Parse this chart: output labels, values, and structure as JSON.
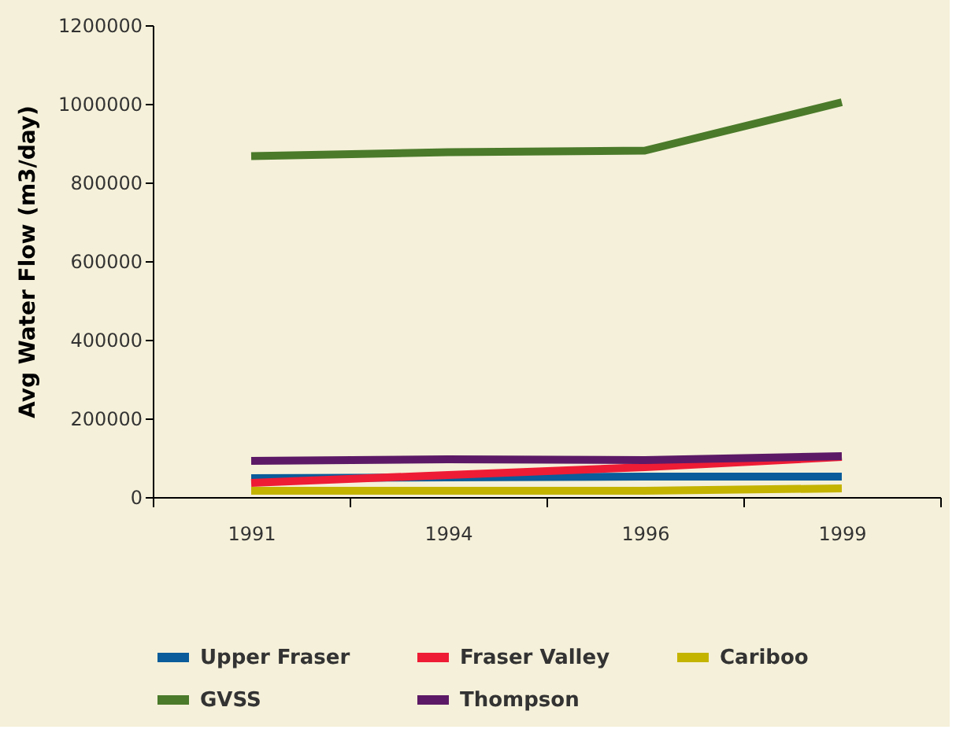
{
  "chart_data": {
    "type": "line",
    "ylabel": "Avg Water Flow (m3/day)",
    "categories": [
      "1991",
      "1994",
      "1996",
      "1999"
    ],
    "series": [
      {
        "name": "Upper Fraser",
        "color": "#0a5c9a",
        "values": [
          48000,
          50000,
          52000,
          52000
        ]
      },
      {
        "name": "Fraser Valley",
        "color": "#ee1c35",
        "values": [
          36000,
          56000,
          76000,
          102000
        ]
      },
      {
        "name": "Cariboo",
        "color": "#c4b400",
        "values": [
          16000,
          16000,
          16000,
          22000
        ]
      },
      {
        "name": "GVSS",
        "color": "#4a7a2a",
        "values": [
          867000,
          877000,
          881000,
          1004000
        ]
      },
      {
        "name": "Thompson",
        "color": "#5c1a66",
        "values": [
          92000,
          96000,
          94000,
          104000
        ]
      }
    ],
    "ylim": [
      0,
      1200000
    ],
    "yticks": [
      0,
      200000,
      400000,
      600000,
      800000,
      1000000,
      1200000
    ],
    "grid": false,
    "legend": "bottom",
    "marker": "none",
    "line_style": "solid"
  }
}
